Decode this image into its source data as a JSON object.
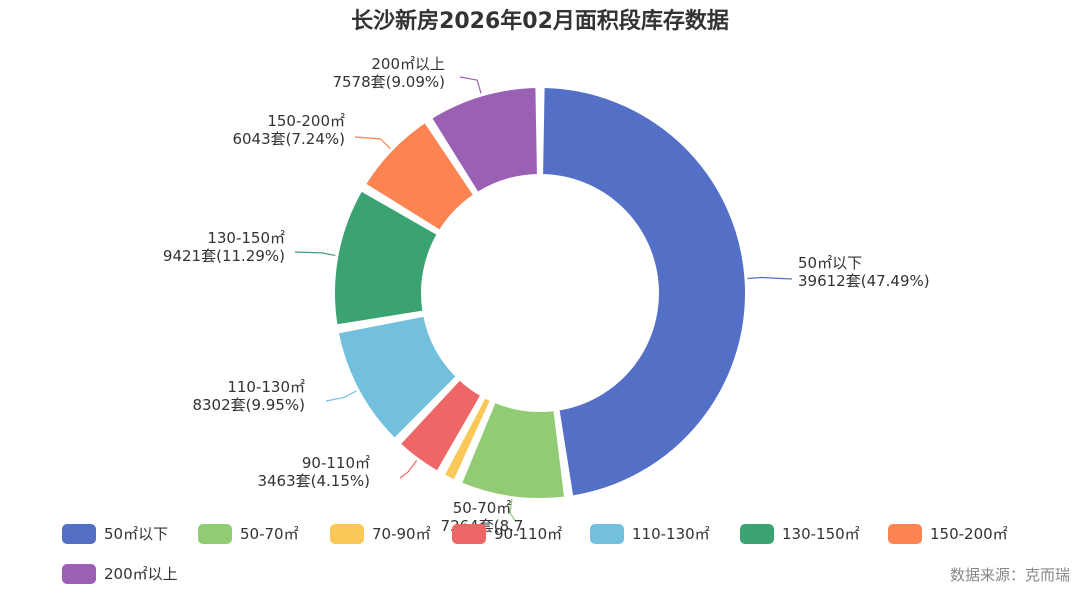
{
  "title": "长沙新房2026年02月面积段库存数据",
  "source": "数据来源：克而瑞",
  "chart_data": {
    "type": "pie",
    "title": "长沙新房2026年02月面积段库存数据",
    "unit": "套",
    "categories": [
      "50㎡以下",
      "50-70㎡",
      "70-90㎡",
      "90-110㎡",
      "110-130㎡",
      "130-150㎡",
      "150-200㎡",
      "200㎡以上"
    ],
    "values": [
      39612,
      7264,
      1230,
      3463,
      8302,
      9421,
      6043,
      7578
    ],
    "percents": [
      "47.49%",
      "8.71%",
      "1.47%",
      "4.15%",
      "9.95%",
      "11.29%",
      "7.24%",
      "9.09%"
    ],
    "labels": [
      {
        "name": "50㎡以下",
        "value": "39612套(47.49%)"
      },
      {
        "name": "50-70㎡",
        "value": "7264套(8.7"
      },
      {
        "name": "",
        "value": ""
      },
      {
        "name": "90-110㎡",
        "value": "3463套(4.15%)"
      },
      {
        "name": "110-130㎡",
        "value": "8302套(9.95%)"
      },
      {
        "name": "130-150㎡",
        "value": "9421套(11.29%)"
      },
      {
        "name": "150-200㎡",
        "value": "6043套(7.24%)"
      },
      {
        "name": "200㎡以上",
        "value": "7578套(9.09%)"
      }
    ],
    "colors": [
      "#5470c6",
      "#91cc75",
      "#fac858",
      "#ee6666",
      "#73c0de",
      "#3ba272",
      "#fc8452",
      "#9a60b4"
    ],
    "legend_position": "bottom"
  }
}
